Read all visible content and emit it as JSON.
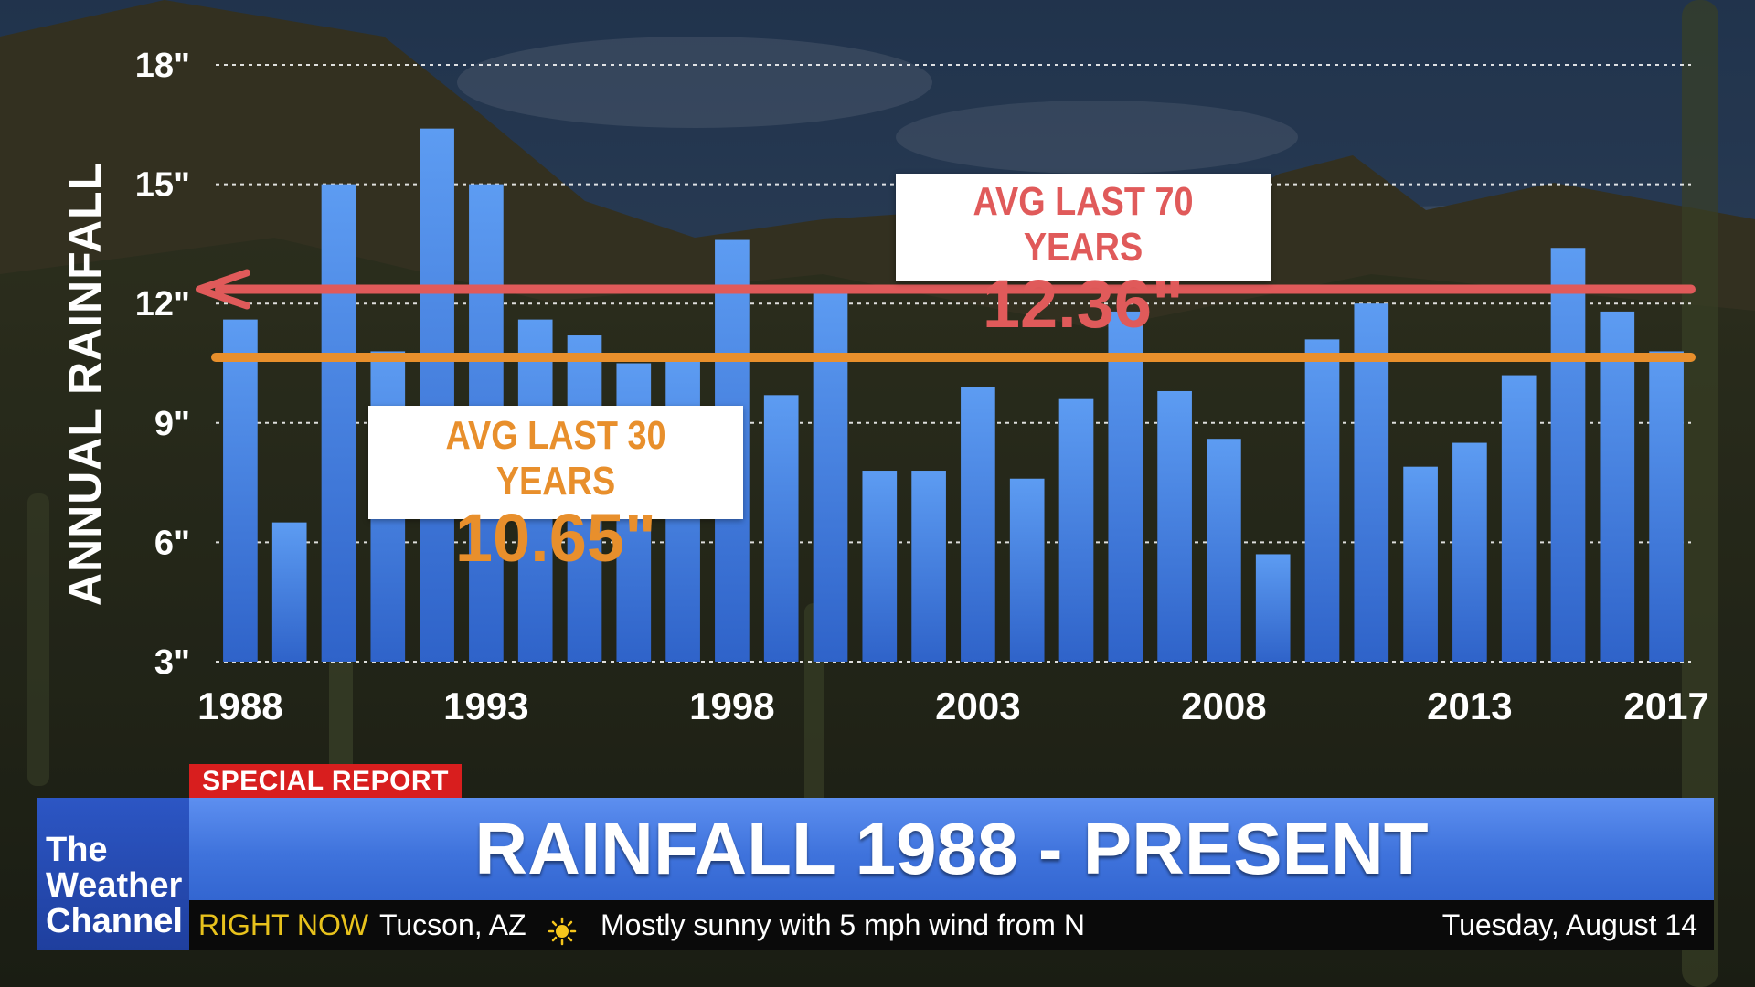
{
  "chart_data": {
    "type": "bar",
    "ylabel": "ANNUAL RAINFALL",
    "y_ticks": [
      "18\"",
      "15\"",
      "12\"",
      "9\"",
      "6\"",
      "3\""
    ],
    "y_tick_values": [
      18,
      15,
      12,
      9,
      6,
      3
    ],
    "ylim": [
      3,
      18
    ],
    "x_tick_labels": [
      "1988",
      "1993",
      "1998",
      "2003",
      "2008",
      "2013",
      "2017"
    ],
    "categories": [
      1988,
      1989,
      1990,
      1991,
      1992,
      1993,
      1994,
      1995,
      1996,
      1997,
      1998,
      1999,
      2000,
      2001,
      2002,
      2003,
      2004,
      2005,
      2006,
      2007,
      2008,
      2009,
      2010,
      2011,
      2012,
      2013,
      2014,
      2015,
      2016,
      2017
    ],
    "values": [
      11.6,
      6.5,
      15.0,
      10.8,
      16.4,
      15.0,
      11.6,
      11.2,
      10.5,
      10.6,
      13.6,
      9.7,
      12.4,
      7.8,
      7.8,
      9.9,
      7.6,
      9.6,
      11.8,
      9.8,
      8.6,
      5.7,
      11.1,
      12.0,
      7.9,
      8.5,
      10.2,
      13.4,
      11.8,
      10.8
    ],
    "grid": true,
    "bar_color": "#4a86e8",
    "reference_lines": [
      {
        "label": "AVG LAST 70 YEARS",
        "value_text": "12.36\"",
        "y": 12.36,
        "color": "#e05a5a",
        "arrow": true
      },
      {
        "label": "AVG LAST 30 YEARS",
        "value_text": "10.65\"",
        "y": 10.65,
        "color": "#e88f2c"
      }
    ]
  },
  "lower_third": {
    "badge": "SPECIAL REPORT",
    "title": "RAINFALL 1988 - PRESENT",
    "logo": "The\nWeather\nChannel",
    "ticker_label": "RIGHT NOW",
    "location": "Tucson, AZ",
    "weather_icon": "sun-icon",
    "condition": "Mostly sunny with 5 mph wind from N",
    "date": "Tuesday, August 14"
  },
  "colors": {
    "badge_red": "#d81e1e",
    "title_blue": "#4a7fe6",
    "logo_blue": "#2a50bf",
    "ticker_yellow": "#e8c21c"
  }
}
